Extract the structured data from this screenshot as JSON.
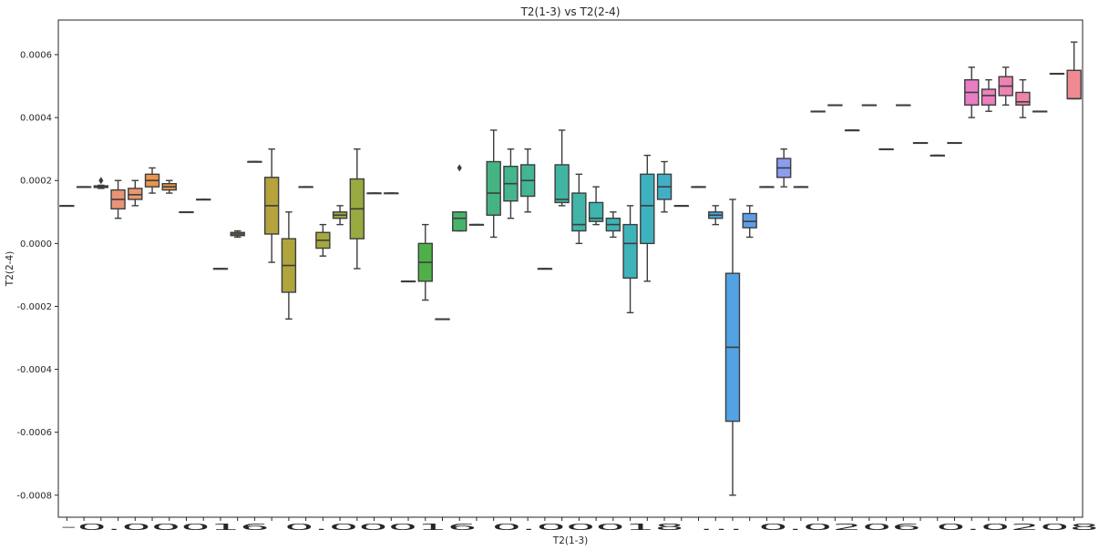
{
  "chart_data": {
    "type": "box",
    "title": "T2(1-3) vs T2(2-4)",
    "xlabel": "T2(1-3)",
    "ylabel": "T2(2-4)",
    "ylim": [
      -0.00087,
      0.00071
    ],
    "yticks": [
      {
        "value": -0.0008,
        "label": "-0.0008"
      },
      {
        "value": -0.0006,
        "label": "-0.0006"
      },
      {
        "value": -0.0004,
        "label": "-0.0004"
      },
      {
        "value": -0.0002,
        "label": "-0.0002"
      },
      {
        "value": 0.0,
        "label": "0.0000"
      },
      {
        "value": 0.0002,
        "label": "0.0002"
      },
      {
        "value": 0.0004,
        "label": "0.0004"
      },
      {
        "value": 0.0006,
        "label": "0.0006"
      }
    ],
    "visible_xtick_text": "-0.00016 0.00016 0.00018 ... 0.0206 0.0208",
    "xtick_left_label": "-0.0001",
    "xtick_right_label": "0.0208",
    "categories": [
      {
        "q1": 0.00012,
        "med": 0.00012,
        "q3": 0.00012,
        "lo": 0.00012,
        "hi": 0.00012,
        "color": "#e58a8a"
      },
      {
        "q1": 0.00018,
        "med": 0.00018,
        "q3": 0.00018,
        "lo": 0.00018,
        "hi": 0.00018,
        "color": "#e58c84"
      },
      {
        "q1": 0.000178,
        "med": 0.00018,
        "q3": 0.000183,
        "lo": 0.000175,
        "hi": 0.000185,
        "color": "#e78f7c",
        "outliers": [
          0.0002
        ]
      },
      {
        "q1": 0.00011,
        "med": 0.00014,
        "q3": 0.00017,
        "lo": 8e-05,
        "hi": 0.0002,
        "color": "#e99377"
      },
      {
        "q1": 0.00014,
        "med": 0.000155,
        "q3": 0.000175,
        "lo": 0.00012,
        "hi": 0.0002,
        "color": "#ea966f"
      },
      {
        "q1": 0.00018,
        "med": 0.0002,
        "q3": 0.00022,
        "lo": 0.00016,
        "hi": 0.00024,
        "color": "#e8954f"
      },
      {
        "q1": 0.00017,
        "med": 0.00018,
        "q3": 0.00019,
        "lo": 0.00016,
        "hi": 0.0002,
        "color": "#e6984a"
      },
      {
        "q1": 0.0001,
        "med": 0.0001,
        "q3": 0.0001,
        "lo": 0.0001,
        "hi": 0.0001,
        "color": "#e59a46"
      },
      {
        "q1": 0.00014,
        "med": 0.00014,
        "q3": 0.00014,
        "lo": 0.00014,
        "hi": 0.00014,
        "color": "#d9a046"
      },
      {
        "q1": -8e-05,
        "med": -8e-05,
        "q3": -8e-05,
        "lo": -8e-05,
        "hi": -8e-05,
        "color": "#cca346"
      },
      {
        "q1": 2.5e-05,
        "med": 3e-05,
        "q3": 3.5e-05,
        "lo": 2e-05,
        "hi": 4e-05,
        "color": "#c4a53e"
      },
      {
        "q1": 0.00026,
        "med": 0.00026,
        "q3": 0.00026,
        "lo": 0.00026,
        "hi": 0.00026,
        "color": "#bca63e"
      },
      {
        "q1": 3e-05,
        "med": 0.00012,
        "q3": 0.00021,
        "lo": -6e-05,
        "hi": 0.0003,
        "color": "#b6a33e"
      },
      {
        "q1": -0.000155,
        "med": -7e-05,
        "q3": 1.5e-05,
        "lo": -0.00024,
        "hi": 0.0001,
        "color": "#b0a43e"
      },
      {
        "q1": 0.00018,
        "med": 0.00018,
        "q3": 0.00018,
        "lo": 0.00018,
        "hi": 0.00018,
        "color": "#aaa63e"
      },
      {
        "q1": -1.5e-05,
        "med": 1e-05,
        "q3": 3.5e-05,
        "lo": -4e-05,
        "hi": 6e-05,
        "color": "#a6a83e"
      },
      {
        "q1": 8e-05,
        "med": 9e-05,
        "q3": 0.0001,
        "lo": 6e-05,
        "hi": 0.00012,
        "color": "#9fa83e"
      },
      {
        "q1": 1.5e-05,
        "med": 0.00011,
        "q3": 0.000205,
        "lo": -8e-05,
        "hi": 0.0003,
        "color": "#98aa40"
      },
      {
        "q1": 0.00016,
        "med": 0.00016,
        "q3": 0.00016,
        "lo": 0.00016,
        "hi": 0.00016,
        "color": "#8eab42"
      },
      {
        "q1": 0.00016,
        "med": 0.00016,
        "q3": 0.00016,
        "lo": 0.00016,
        "hi": 0.00016,
        "color": "#84ac44"
      },
      {
        "q1": -0.00012,
        "med": -0.00012,
        "q3": -0.00012,
        "lo": -0.00012,
        "hi": -0.00012,
        "color": "#6fae46"
      },
      {
        "q1": -0.00012,
        "med": -6e-05,
        "q3": 0.0,
        "lo": -0.00018,
        "hi": 6e-05,
        "color": "#4fb04a"
      },
      {
        "q1": -0.00024,
        "med": -0.00024,
        "q3": -0.00024,
        "lo": -0.00024,
        "hi": -0.00024,
        "color": "#47b15c"
      },
      {
        "q1": 4e-05,
        "med": 8e-05,
        "q3": 0.0001,
        "lo": 4e-05,
        "hi": 0.0001,
        "color": "#47b36a",
        "outliers": [
          0.00024
        ]
      },
      {
        "q1": 6e-05,
        "med": 6e-05,
        "q3": 6e-05,
        "lo": 6e-05,
        "hi": 6e-05,
        "color": "#46b377"
      },
      {
        "q1": 9e-05,
        "med": 0.00016,
        "q3": 0.00026,
        "lo": 2e-05,
        "hi": 0.00036,
        "color": "#45b482"
      },
      {
        "q1": 0.000135,
        "med": 0.00019,
        "q3": 0.000245,
        "lo": 8e-05,
        "hi": 0.0003,
        "color": "#44b58c"
      },
      {
        "q1": 0.00015,
        "med": 0.0002,
        "q3": 0.00025,
        "lo": 0.0001,
        "hi": 0.0003,
        "color": "#43b594"
      },
      {
        "q1": -8e-05,
        "med": -8e-05,
        "q3": -8e-05,
        "lo": -8e-05,
        "hi": -8e-05,
        "color": "#42b59b"
      },
      {
        "q1": 0.00013,
        "med": 0.00014,
        "q3": 0.00025,
        "lo": 0.00012,
        "hi": 0.00036,
        "color": "#41b5a2"
      },
      {
        "q1": 4e-05,
        "med": 6e-05,
        "q3": 0.00016,
        "lo": 0.0,
        "hi": 0.00022,
        "color": "#40b5a8"
      },
      {
        "q1": 7e-05,
        "med": 8e-05,
        "q3": 0.00013,
        "lo": 6e-05,
        "hi": 0.00018,
        "color": "#3fb5ae"
      },
      {
        "q1": 4e-05,
        "med": 6e-05,
        "q3": 8e-05,
        "lo": 2e-05,
        "hi": 0.0001,
        "color": "#3eb5b4"
      },
      {
        "q1": -0.00011,
        "med": 0.0,
        "q3": 6e-05,
        "lo": -0.00022,
        "hi": 0.00012,
        "color": "#3eb4ba"
      },
      {
        "q1": 0.0,
        "med": 0.00012,
        "q3": 0.00022,
        "lo": -0.00012,
        "hi": 0.00028,
        "color": "#3fb2c0"
      },
      {
        "q1": 0.00014,
        "med": 0.00018,
        "q3": 0.00022,
        "lo": 0.0001,
        "hi": 0.00026,
        "color": "#41b0c6"
      },
      {
        "q1": 0.00012,
        "med": 0.00012,
        "q3": 0.00012,
        "lo": 0.00012,
        "hi": 0.00012,
        "color": "#43aecd"
      },
      {
        "q1": 0.00018,
        "med": 0.00018,
        "q3": 0.00018,
        "lo": 0.00018,
        "hi": 0.00018,
        "color": "#46abd4"
      },
      {
        "q1": 8e-05,
        "med": 9e-05,
        "q3": 0.0001,
        "lo": 6e-05,
        "hi": 0.00012,
        "color": "#4aa7dc"
      },
      {
        "q1": -0.000565,
        "med": -0.00033,
        "q3": -9.5e-05,
        "lo": -0.0008,
        "hi": 0.00014,
        "color": "#52a2e4"
      },
      {
        "q1": 5e-05,
        "med": 7e-05,
        "q3": 9.5e-05,
        "lo": 2e-05,
        "hi": 0.00012,
        "color": "#5d9de8"
      },
      {
        "q1": 0.00018,
        "med": 0.00018,
        "q3": 0.00018,
        "lo": 0.00018,
        "hi": 0.00018,
        "color": "#7399ea"
      },
      {
        "q1": 0.00021,
        "med": 0.00024,
        "q3": 0.00027,
        "lo": 0.00018,
        "hi": 0.0003,
        "color": "#8a9dee"
      },
      {
        "q1": 0.00018,
        "med": 0.00018,
        "q3": 0.00018,
        "lo": 0.00018,
        "hi": 0.00018,
        "color": "#9a97ee"
      },
      {
        "q1": 0.00042,
        "med": 0.00042,
        "q3": 0.00042,
        "lo": 0.00042,
        "hi": 0.00042,
        "color": "#a892ec"
      },
      {
        "q1": 0.00044,
        "med": 0.00044,
        "q3": 0.00044,
        "lo": 0.00044,
        "hi": 0.00044,
        "color": "#b48cea"
      },
      {
        "q1": 0.00036,
        "med": 0.00036,
        "q3": 0.00036,
        "lo": 0.00036,
        "hi": 0.00036,
        "color": "#bf88e8"
      },
      {
        "q1": 0.00044,
        "med": 0.00044,
        "q3": 0.00044,
        "lo": 0.00044,
        "hi": 0.00044,
        "color": "#c985e6"
      },
      {
        "q1": 0.0003,
        "med": 0.0003,
        "q3": 0.0003,
        "lo": 0.0003,
        "hi": 0.0003,
        "color": "#d282e3"
      },
      {
        "q1": 0.00044,
        "med": 0.00044,
        "q3": 0.00044,
        "lo": 0.00044,
        "hi": 0.00044,
        "color": "#da80df"
      },
      {
        "q1": 0.00032,
        "med": 0.00032,
        "q3": 0.00032,
        "lo": 0.00032,
        "hi": 0.00032,
        "color": "#e07fd9"
      },
      {
        "q1": 0.00028,
        "med": 0.00028,
        "q3": 0.00028,
        "lo": 0.00028,
        "hi": 0.00028,
        "color": "#e47ed2"
      },
      {
        "q1": 0.00032,
        "med": 0.00032,
        "q3": 0.00032,
        "lo": 0.00032,
        "hi": 0.00032,
        "color": "#e77ecb"
      },
      {
        "q1": 0.00044,
        "med": 0.00048,
        "q3": 0.00052,
        "lo": 0.0004,
        "hi": 0.00056,
        "color": "#ea7ec4"
      },
      {
        "q1": 0.00044,
        "med": 0.00047,
        "q3": 0.00049,
        "lo": 0.00042,
        "hi": 0.00052,
        "color": "#ec80bc"
      },
      {
        "q1": 0.00047,
        "med": 0.0005,
        "q3": 0.00053,
        "lo": 0.00044,
        "hi": 0.00056,
        "color": "#ed82b3"
      },
      {
        "q1": 0.00044,
        "med": 0.00045,
        "q3": 0.00048,
        "lo": 0.0004,
        "hi": 0.00052,
        "color": "#ee84aa"
      },
      {
        "q1": 0.00042,
        "med": 0.00042,
        "q3": 0.00042,
        "lo": 0.00042,
        "hi": 0.00042,
        "color": "#ef86a2"
      },
      {
        "q1": 0.00054,
        "med": 0.00054,
        "q3": 0.00054,
        "lo": 0.00054,
        "hi": 0.00054,
        "color": "#ef889a"
      },
      {
        "q1": 0.00046,
        "med": 0.00046,
        "q3": 0.00055,
        "lo": 0.00046,
        "hi": 0.00064,
        "color": "#ef8a92"
      }
    ]
  }
}
